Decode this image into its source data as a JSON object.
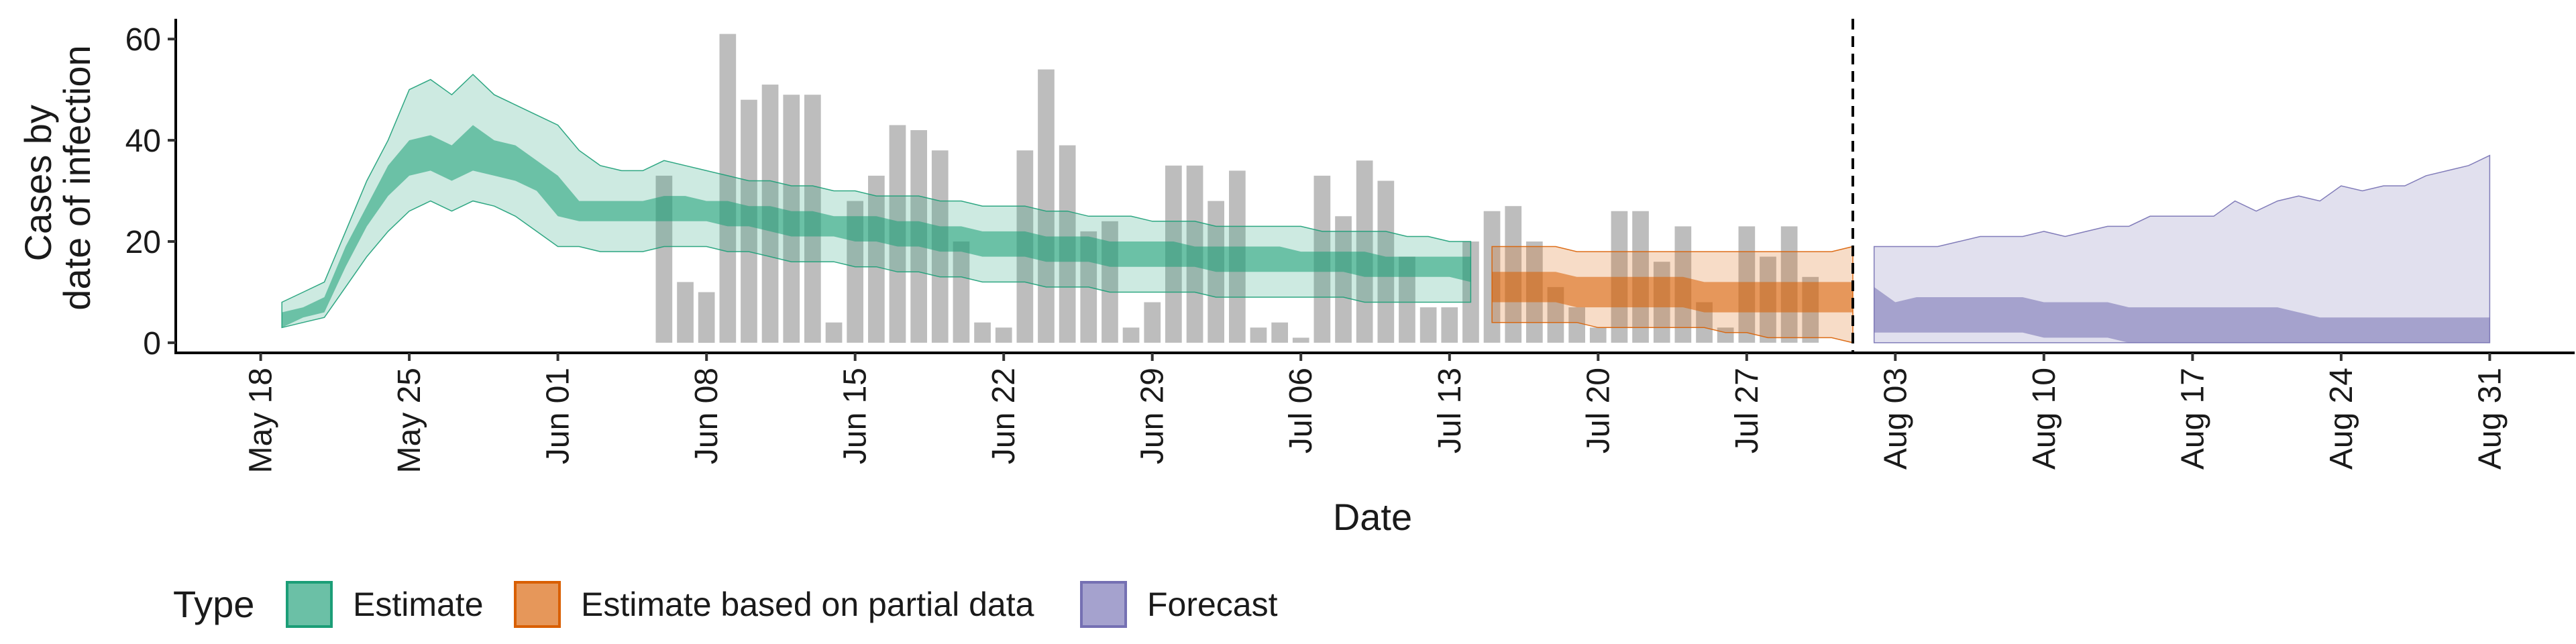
{
  "chart_data": {
    "type": "area",
    "title": "",
    "xlabel": "Date",
    "ylabel": [
      "Cases by",
      "date of infection"
    ],
    "xlim": [
      "2021-05-14",
      "2021-09-04"
    ],
    "ylim": [
      -2,
      64
    ],
    "yticks": [
      0,
      20,
      40,
      60
    ],
    "xticks": [
      {
        "date": "2021-05-18",
        "label": "May 18"
      },
      {
        "date": "2021-05-25",
        "label": "May 25"
      },
      {
        "date": "2021-06-01",
        "label": "Jun 01"
      },
      {
        "date": "2021-06-08",
        "label": "Jun 08"
      },
      {
        "date": "2021-06-15",
        "label": "Jun 15"
      },
      {
        "date": "2021-06-22",
        "label": "Jun 22"
      },
      {
        "date": "2021-06-29",
        "label": "Jun 29"
      },
      {
        "date": "2021-07-06",
        "label": "Jul 06"
      },
      {
        "date": "2021-07-13",
        "label": "Jul 13"
      },
      {
        "date": "2021-07-20",
        "label": "Jul 20"
      },
      {
        "date": "2021-07-27",
        "label": "Jul 27"
      },
      {
        "date": "2021-08-03",
        "label": "Aug 03"
      },
      {
        "date": "2021-08-10",
        "label": "Aug 10"
      },
      {
        "date": "2021-08-17",
        "label": "Aug 17"
      },
      {
        "date": "2021-08-24",
        "label": "Aug 24"
      },
      {
        "date": "2021-08-31",
        "label": "Aug 31"
      }
    ],
    "vline_date": "2021-08-01",
    "grid": false,
    "legend_position": "bottom",
    "legend_title": "Type",
    "colors": {
      "estimate": "#1b9e77",
      "partial": "#d95f02",
      "forecast": "#7570b3",
      "bars": "#bdbdbd",
      "axis": "#000000"
    },
    "observed_bars": {
      "start_date": "2021-06-06",
      "values": [
        33,
        12,
        10,
        61,
        48,
        51,
        49,
        49,
        4,
        28,
        33,
        43,
        42,
        38,
        20,
        4,
        3,
        38,
        54,
        39,
        22,
        24,
        3,
        8,
        35,
        35,
        28,
        34,
        3,
        4,
        1,
        33,
        25,
        36,
        32,
        17,
        7,
        7,
        20,
        26,
        27,
        20,
        11,
        7,
        3,
        26,
        26,
        16,
        23,
        8,
        3,
        23,
        17,
        23,
        13
      ]
    },
    "series": [
      {
        "name": "Estimate",
        "color_key": "estimate",
        "x": [
          "2021-05-19",
          "2021-05-20",
          "2021-05-21",
          "2021-05-22",
          "2021-05-23",
          "2021-05-24",
          "2021-05-25",
          "2021-05-26",
          "2021-05-27",
          "2021-05-28",
          "2021-05-29",
          "2021-05-30",
          "2021-05-31",
          "2021-06-01",
          "2021-06-02",
          "2021-06-03",
          "2021-06-04",
          "2021-06-05",
          "2021-06-06",
          "2021-06-07",
          "2021-06-08",
          "2021-06-09",
          "2021-06-10",
          "2021-06-11",
          "2021-06-12",
          "2021-06-13",
          "2021-06-14",
          "2021-06-15",
          "2021-06-16",
          "2021-06-17",
          "2021-06-18",
          "2021-06-19",
          "2021-06-20",
          "2021-06-21",
          "2021-06-22",
          "2021-06-23",
          "2021-06-24",
          "2021-06-25",
          "2021-06-26",
          "2021-06-27",
          "2021-06-28",
          "2021-06-29",
          "2021-06-30",
          "2021-07-01",
          "2021-07-02",
          "2021-07-03",
          "2021-07-04",
          "2021-07-05",
          "2021-07-06",
          "2021-07-07",
          "2021-07-08",
          "2021-07-09",
          "2021-07-10",
          "2021-07-11",
          "2021-07-12",
          "2021-07-13",
          "2021-07-14"
        ],
        "lower90": [
          3,
          4,
          5,
          11,
          17,
          22,
          26,
          28,
          26,
          28,
          27,
          25,
          22,
          19,
          19,
          18,
          18,
          18,
          19,
          19,
          19,
          18,
          18,
          17,
          16,
          16,
          16,
          15,
          15,
          14,
          14,
          13,
          13,
          12,
          12,
          12,
          11,
          11,
          11,
          10,
          10,
          10,
          10,
          10,
          9,
          9,
          9,
          9,
          9,
          9,
          9,
          8,
          8,
          8,
          8,
          8,
          8
        ],
        "upper90": [
          8,
          10,
          12,
          22,
          32,
          40,
          50,
          52,
          49,
          53,
          49,
          47,
          45,
          43,
          38,
          35,
          34,
          34,
          36,
          35,
          34,
          33,
          32,
          32,
          31,
          31,
          30,
          30,
          29,
          29,
          29,
          28,
          28,
          27,
          27,
          27,
          26,
          26,
          25,
          25,
          25,
          24,
          24,
          24,
          23,
          23,
          23,
          23,
          23,
          22,
          22,
          22,
          22,
          21,
          21,
          20,
          20
        ],
        "lower50": [
          3,
          5,
          6,
          15,
          23,
          29,
          33,
          34,
          32,
          34,
          33,
          32,
          30,
          25,
          24,
          24,
          24,
          24,
          24,
          24,
          24,
          23,
          23,
          22,
          21,
          21,
          21,
          20,
          20,
          19,
          19,
          18,
          18,
          17,
          17,
          17,
          16,
          16,
          16,
          15,
          15,
          15,
          15,
          15,
          14,
          14,
          14,
          14,
          14,
          14,
          14,
          13,
          13,
          13,
          13,
          13,
          12
        ],
        "upper50": [
          6,
          7,
          9,
          19,
          27,
          35,
          40,
          41,
          39,
          43,
          40,
          39,
          36,
          33,
          28,
          28,
          28,
          28,
          29,
          29,
          28,
          28,
          27,
          27,
          26,
          26,
          25,
          25,
          25,
          24,
          24,
          23,
          23,
          22,
          22,
          22,
          21,
          21,
          21,
          20,
          20,
          20,
          20,
          19,
          19,
          19,
          19,
          19,
          18,
          18,
          18,
          18,
          17,
          17,
          17,
          17,
          17
        ]
      },
      {
        "name": "Estimate based on partial data",
        "color_key": "partial",
        "x": [
          "2021-07-15",
          "2021-07-16",
          "2021-07-17",
          "2021-07-18",
          "2021-07-19",
          "2021-07-20",
          "2021-07-21",
          "2021-07-22",
          "2021-07-23",
          "2021-07-24",
          "2021-07-25",
          "2021-07-26",
          "2021-07-27",
          "2021-07-28",
          "2021-07-29",
          "2021-07-30",
          "2021-07-31",
          "2021-08-01"
        ],
        "lower90": [
          4,
          4,
          4,
          4,
          4,
          3,
          3,
          3,
          3,
          3,
          3,
          2,
          2,
          1,
          1,
          1,
          1,
          0
        ],
        "upper90": [
          19,
          19,
          19,
          19,
          18,
          18,
          18,
          18,
          18,
          18,
          18,
          18,
          18,
          18,
          18,
          18,
          18,
          19
        ],
        "lower50": [
          8,
          8,
          8,
          8,
          7,
          7,
          7,
          7,
          7,
          7,
          6,
          6,
          6,
          6,
          6,
          6,
          6,
          6
        ],
        "upper50": [
          14,
          14,
          14,
          14,
          13,
          13,
          13,
          13,
          13,
          13,
          12,
          12,
          12,
          12,
          12,
          12,
          12,
          12
        ]
      },
      {
        "name": "Forecast",
        "color_key": "forecast",
        "x": [
          "2021-08-02",
          "2021-08-03",
          "2021-08-04",
          "2021-08-05",
          "2021-08-06",
          "2021-08-07",
          "2021-08-08",
          "2021-08-09",
          "2021-08-10",
          "2021-08-11",
          "2021-08-12",
          "2021-08-13",
          "2021-08-14",
          "2021-08-15",
          "2021-08-16",
          "2021-08-17",
          "2021-08-18",
          "2021-08-19",
          "2021-08-20",
          "2021-08-21",
          "2021-08-22",
          "2021-08-23",
          "2021-08-24",
          "2021-08-25",
          "2021-08-26",
          "2021-08-27",
          "2021-08-28",
          "2021-08-29",
          "2021-08-30",
          "2021-08-31"
        ],
        "lower90": [
          0,
          0,
          0,
          0,
          0,
          0,
          0,
          0,
          0,
          0,
          0,
          0,
          0,
          0,
          0,
          0,
          0,
          0,
          0,
          0,
          0,
          0,
          0,
          0,
          0,
          0,
          0,
          0,
          0,
          0
        ],
        "upper90": [
          19,
          19,
          19,
          19,
          20,
          21,
          21,
          21,
          22,
          21,
          22,
          23,
          23,
          25,
          25,
          25,
          25,
          28,
          26,
          28,
          29,
          28,
          31,
          30,
          31,
          31,
          33,
          34,
          35,
          37
        ],
        "lower50": [
          2,
          2,
          2,
          2,
          2,
          2,
          2,
          2,
          1,
          1,
          1,
          1,
          0,
          0,
          0,
          0,
          0,
          0,
          0,
          0,
          0,
          0,
          0,
          0,
          0,
          0,
          0,
          0,
          0,
          0
        ],
        "upper50": [
          11,
          8,
          9,
          9,
          9,
          9,
          9,
          9,
          8,
          8,
          8,
          8,
          7,
          7,
          7,
          7,
          7,
          7,
          7,
          7,
          6,
          5,
          5,
          5,
          5,
          5,
          5,
          5,
          5,
          5
        ]
      }
    ]
  }
}
